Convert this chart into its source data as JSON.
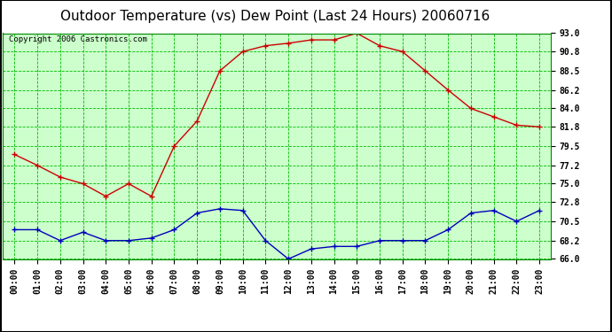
{
  "title": "Outdoor Temperature (vs) Dew Point (Last 24 Hours) 20060716",
  "copyright": "Copyright 2006 Castronics.com",
  "hours": [
    "00:00",
    "01:00",
    "02:00",
    "03:00",
    "04:00",
    "05:00",
    "06:00",
    "07:00",
    "08:00",
    "09:00",
    "10:00",
    "11:00",
    "12:00",
    "13:00",
    "14:00",
    "15:00",
    "16:00",
    "17:00",
    "18:00",
    "19:00",
    "20:00",
    "21:00",
    "22:00",
    "23:00"
  ],
  "temp": [
    78.5,
    77.2,
    75.8,
    75.0,
    73.5,
    75.0,
    73.5,
    79.5,
    82.5,
    88.5,
    90.8,
    91.5,
    91.8,
    92.2,
    92.2,
    93.0,
    91.5,
    90.8,
    88.5,
    86.2,
    84.0,
    83.0,
    82.0,
    81.8
  ],
  "dew": [
    69.5,
    69.5,
    68.2,
    69.2,
    68.2,
    68.2,
    68.5,
    69.5,
    71.5,
    72.0,
    71.8,
    68.2,
    66.0,
    67.2,
    67.5,
    67.5,
    68.2,
    68.2,
    68.2,
    69.5,
    71.5,
    71.8,
    70.5,
    71.8
  ],
  "temp_color": "#cc0000",
  "dew_color": "#0000bb",
  "bg_color": "#ccffcc",
  "grid_color": "#00bb00",
  "ylim": [
    66.0,
    93.0
  ],
  "yticks": [
    66.0,
    68.2,
    70.5,
    72.8,
    75.0,
    77.2,
    79.5,
    81.8,
    84.0,
    86.2,
    88.5,
    90.8,
    93.0
  ],
  "title_fontsize": 11,
  "copyright_fontsize": 6.5,
  "tick_fontsize": 7,
  "outer_border_color": "#000000",
  "fig_bg": "#ffffff"
}
